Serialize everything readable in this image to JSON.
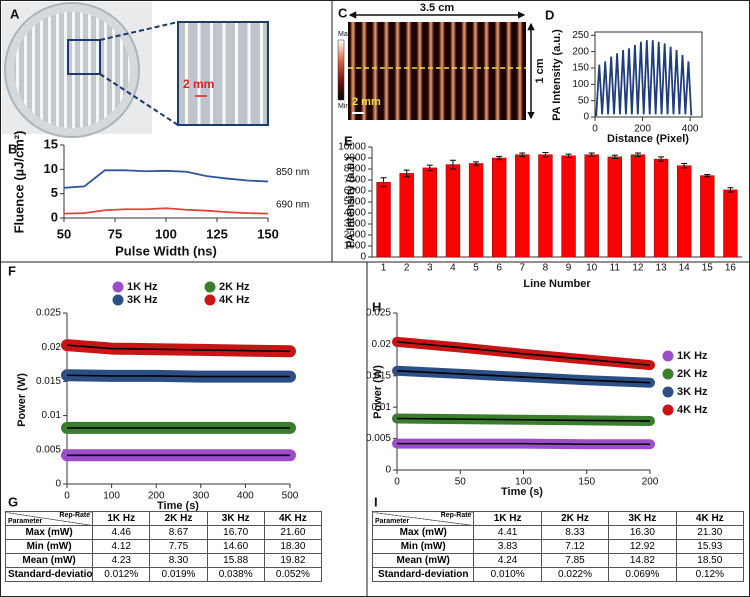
{
  "panel_a": {
    "label": "A",
    "scale": "2 mm"
  },
  "panel_c": {
    "label": "C",
    "width": "3.5 cm",
    "height": "1 cm",
    "colorbar_max": "Max",
    "colorbar_min": "Min",
    "scale": "2 mm"
  },
  "chart_data": [
    {
      "type": "line",
      "label": "B",
      "x_label": "Pulse Width (ns)",
      "y_label": "Fluence (µJ/cm²)",
      "x": [
        50,
        60,
        70,
        80,
        90,
        100,
        110,
        120,
        130,
        140,
        150
      ],
      "xlim": [
        50,
        150
      ],
      "xticks": [
        50,
        75,
        100,
        125,
        150
      ],
      "ylim": [
        0,
        15
      ],
      "yticks": [
        0,
        5,
        10,
        15
      ],
      "legend": "inline",
      "series": [
        {
          "name": "850 nm",
          "color": "#2f5597",
          "values": [
            6.2,
            6.5,
            9.8,
            9.8,
            9.6,
            9.7,
            9.5,
            8.6,
            8.1,
            7.7,
            7.5
          ]
        },
        {
          "name": "690 nm",
          "color": "#e8413a",
          "values": [
            0.9,
            1.0,
            1.6,
            1.8,
            1.8,
            2.0,
            1.7,
            1.5,
            1.2,
            1.0,
            0.9
          ]
        }
      ]
    },
    {
      "type": "line",
      "label": "D",
      "x_label": "Distance (Pixel)",
      "y_label": "PA Intensity (a.u.)",
      "x": [
        5,
        18,
        30,
        43,
        55,
        68,
        80,
        93,
        105,
        118,
        130,
        143,
        155,
        168,
        180,
        193,
        205,
        218,
        230,
        243,
        255,
        268,
        280,
        293,
        305,
        318,
        330,
        343,
        355,
        368,
        380,
        393,
        405
      ],
      "values": [
        3,
        160,
        8,
        170,
        8,
        185,
        8,
        195,
        8,
        205,
        8,
        210,
        8,
        220,
        8,
        230,
        8,
        235,
        8,
        235,
        8,
        230,
        8,
        225,
        8,
        215,
        8,
        205,
        8,
        190,
        8,
        170,
        5
      ],
      "color": "#1f3d7a",
      "xlim": [
        0,
        450
      ],
      "xticks": [
        0,
        200,
        400
      ],
      "ylim": [
        0,
        260
      ],
      "yticks": [
        0,
        50,
        100,
        150,
        200,
        250
      ],
      "frame": true
    },
    {
      "type": "bar",
      "label": "E",
      "x_label": "Line Number",
      "y_label": "PA Intensity (a.u.)",
      "categories": [
        "1",
        "2",
        "3",
        "4",
        "5",
        "6",
        "7",
        "8",
        "9",
        "10",
        "11",
        "12",
        "13",
        "14",
        "15",
        "16"
      ],
      "values": [
        6800,
        7600,
        8100,
        8400,
        8500,
        9000,
        9300,
        9300,
        9200,
        9300,
        9100,
        9300,
        8900,
        8300,
        7400,
        6100
      ],
      "errors": [
        400,
        300,
        250,
        400,
        150,
        150,
        150,
        200,
        150,
        150,
        150,
        150,
        200,
        200,
        100,
        200
      ],
      "color": "#ff0000",
      "ylim": [
        0,
        10000
      ],
      "yticks": [
        0,
        1000,
        2000,
        3000,
        4000,
        5000,
        6000,
        7000,
        8000,
        9000,
        10000
      ]
    },
    {
      "type": "line",
      "label": "F",
      "x_label": "Time (s)",
      "y_label": "Power (W)",
      "trendline": true,
      "legend": "top",
      "x": [
        0,
        100,
        200,
        300,
        400,
        500
      ],
      "xlim": [
        0,
        500
      ],
      "xticks": [
        0,
        100,
        200,
        300,
        400,
        500
      ],
      "ylim": [
        0,
        0.025
      ],
      "yticks": [
        0,
        0.005,
        0.01,
        0.015,
        0.02,
        0.025
      ],
      "series": [
        {
          "name": "1K Hz",
          "color": "#9b4dca",
          "values": [
            0.0042,
            0.0042,
            0.0042,
            0.0042,
            0.0042,
            0.0042
          ]
        },
        {
          "name": "2K Hz",
          "color": "#3a7d2c",
          "values": [
            0.0082,
            0.0082,
            0.0082,
            0.0082,
            0.0082,
            0.0082
          ]
        },
        {
          "name": "3K Hz",
          "color": "#2b4f84",
          "values": [
            0.0159,
            0.0158,
            0.0158,
            0.0157,
            0.0157,
            0.0157
          ]
        },
        {
          "name": "4K Hz",
          "color": "#c81414",
          "values": [
            0.0203,
            0.0198,
            0.0197,
            0.0196,
            0.0195,
            0.0194
          ]
        }
      ]
    },
    {
      "type": "line",
      "label": "H",
      "x_label": "Time (s)",
      "y_label": "Power (W)",
      "trendline": true,
      "legend": "right",
      "x": [
        0,
        50,
        100,
        150,
        200
      ],
      "xlim": [
        0,
        200
      ],
      "xticks": [
        0,
        50,
        100,
        150,
        200
      ],
      "ylim": [
        0,
        0.025
      ],
      "yticks": [
        0,
        0.005,
        0.01,
        0.015,
        0.02,
        0.025
      ],
      "series": [
        {
          "name": "1K Hz",
          "color": "#9b4dca",
          "values": [
            0.0042,
            0.0042,
            0.0042,
            0.0041,
            0.0041
          ]
        },
        {
          "name": "2K Hz",
          "color": "#3a7d2c",
          "values": [
            0.0082,
            0.0081,
            0.008,
            0.0079,
            0.0078
          ]
        },
        {
          "name": "3K Hz",
          "color": "#2b4f84",
          "values": [
            0.0158,
            0.0153,
            0.0148,
            0.0143,
            0.0139
          ]
        },
        {
          "name": "4K Hz",
          "color": "#c81414",
          "values": [
            0.0204,
            0.0195,
            0.0185,
            0.0176,
            0.0167
          ]
        }
      ]
    }
  ],
  "tables": [
    {
      "label": "G",
      "corner_row": "Parameter",
      "corner_col": "Rep-Rate",
      "columns": [
        "1K Hz",
        "2K Hz",
        "3K Hz",
        "4K Hz"
      ],
      "rows": [
        [
          "Max (mW)",
          "4.46",
          "8.67",
          "16.70",
          "21.60"
        ],
        [
          "Min (mW)",
          "4.12",
          "7.75",
          "14.60",
          "18.30"
        ],
        [
          "Mean (mW)",
          "4.23",
          "8.30",
          "15.88",
          "19.82"
        ],
        [
          "Standard-deviation",
          "0.012%",
          "0.019%",
          "0.038%",
          "0.052%"
        ]
      ]
    },
    {
      "label": "I",
      "corner_row": "Parameter",
      "corner_col": "Rep-Rate",
      "columns": [
        "1K Hz",
        "2K Hz",
        "3K Hz",
        "4K Hz"
      ],
      "rows": [
        [
          "Max (mW)",
          "4.41",
          "8.33",
          "16.30",
          "21.30"
        ],
        [
          "Min (mW)",
          "3.83",
          "7.12",
          "12.92",
          "15.93"
        ],
        [
          "Mean (mW)",
          "4.24",
          "7.85",
          "14.82",
          "18.50"
        ],
        [
          "Standard-deviation",
          "0.010%",
          "0.022%",
          "0.069%",
          "0.12%"
        ]
      ]
    }
  ]
}
